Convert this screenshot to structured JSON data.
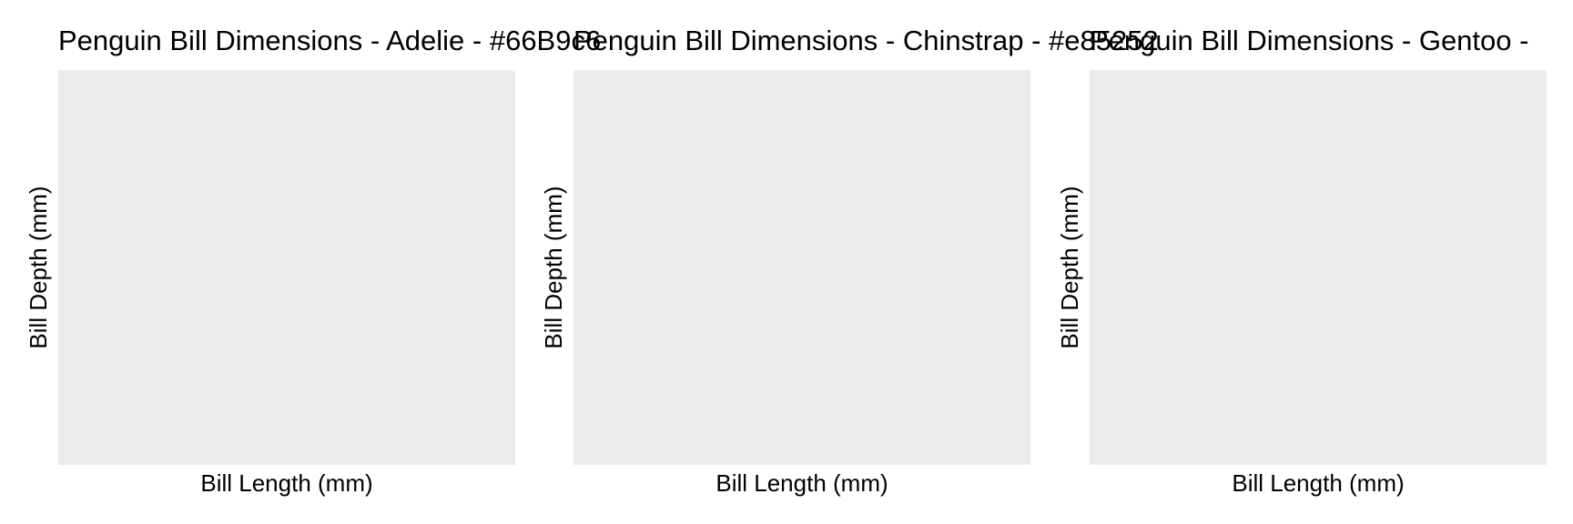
{
  "chart_data": [
    {
      "type": "scatter",
      "title": "Penguin Bill Dimensions - Adelie - #66B9c6",
      "xlabel": "Bill Length (mm)",
      "ylabel": "Bill Depth (mm)",
      "series": [],
      "grid": false,
      "panel_background": "#EBEBEB"
    },
    {
      "type": "scatter",
      "title": "Penguin Bill Dimensions - Chinstrap - #e85252",
      "xlabel": "Bill Length (mm)",
      "ylabel": "Bill Depth (mm)",
      "series": [],
      "grid": false,
      "panel_background": "#EBEBEB"
    },
    {
      "type": "scatter",
      "title": "Penguin Bill Dimensions - Gentoo - ",
      "xlabel": "Bill Length (mm)",
      "ylabel": "Bill Depth (mm)",
      "series": [],
      "grid": false,
      "panel_background": "#EBEBEB"
    }
  ]
}
